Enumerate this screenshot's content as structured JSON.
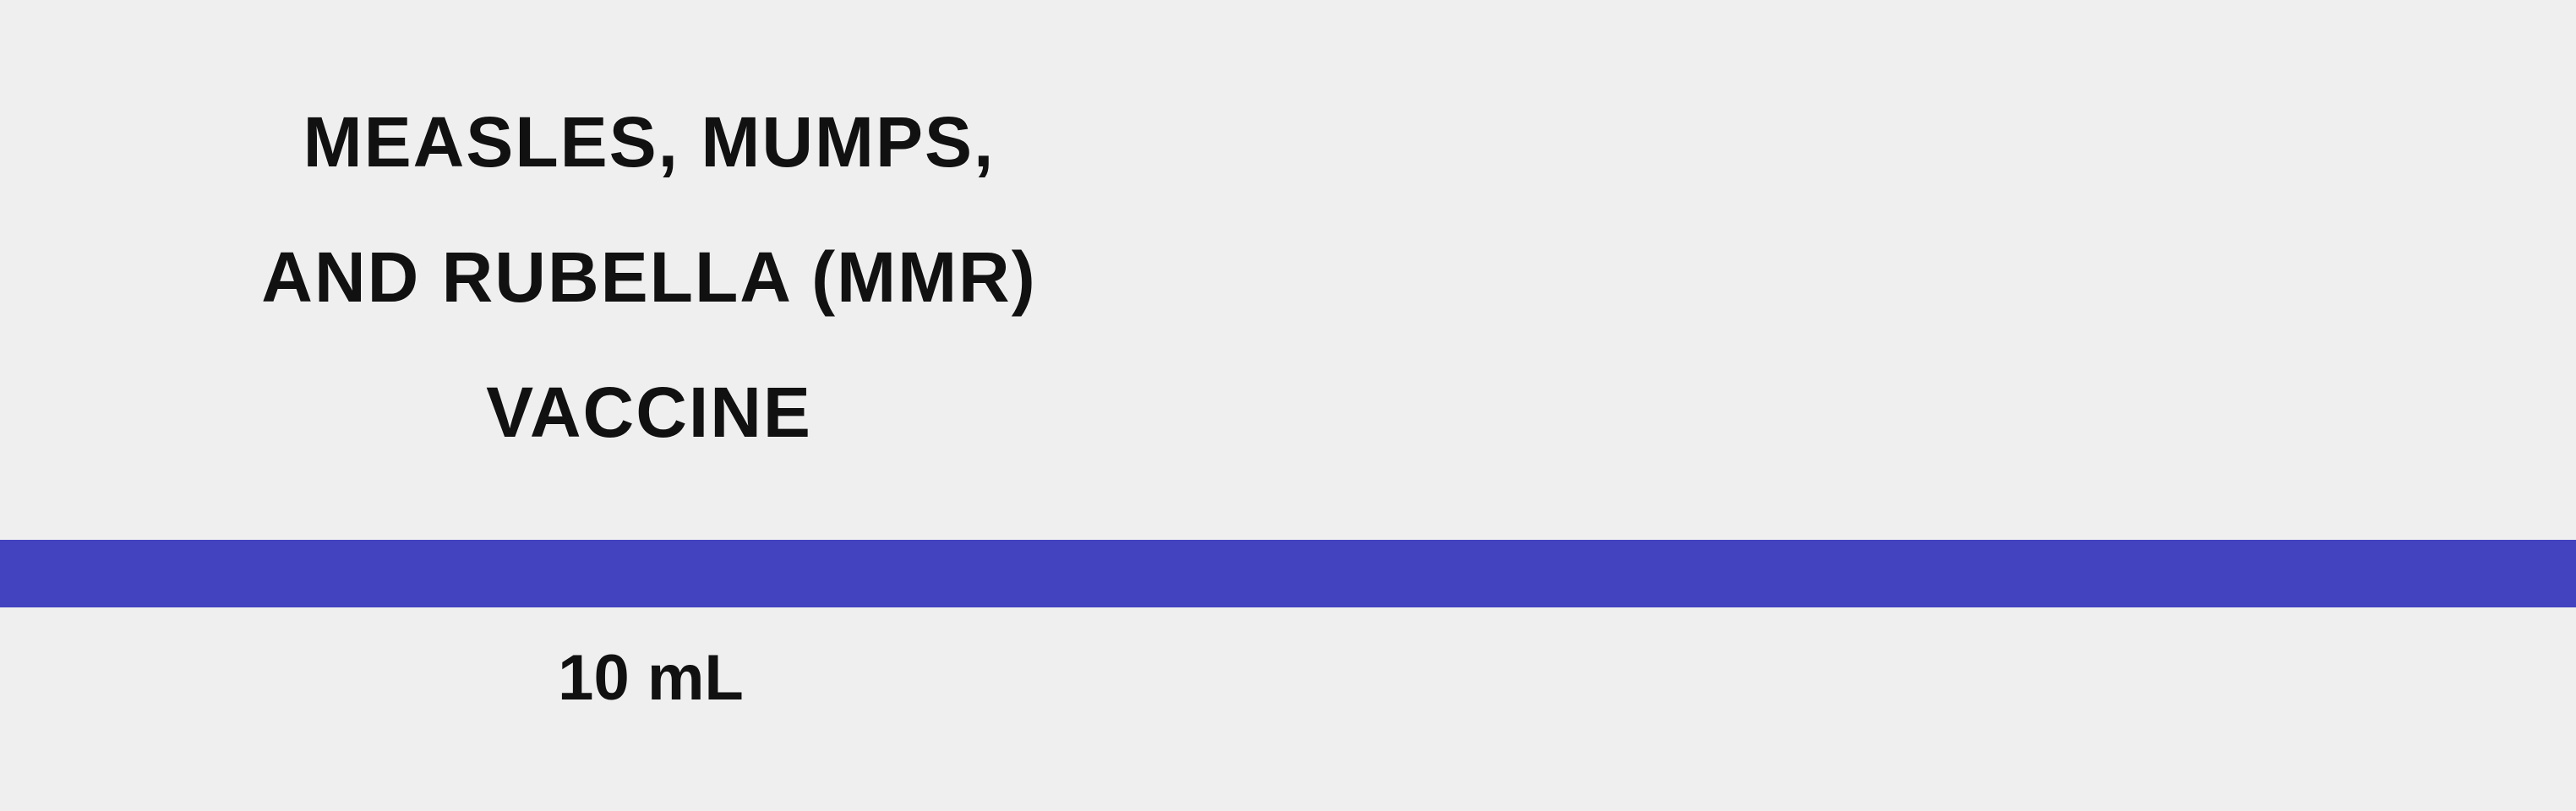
{
  "label": {
    "title_lines": [
      "MEASLES, MUMPS,",
      "AND RUBELLA (MMR)",
      "VACCINE"
    ],
    "volume": "10 mL"
  },
  "colors": {
    "background": "#efefef",
    "accent_band": "#4342bf",
    "text": "#111111"
  }
}
